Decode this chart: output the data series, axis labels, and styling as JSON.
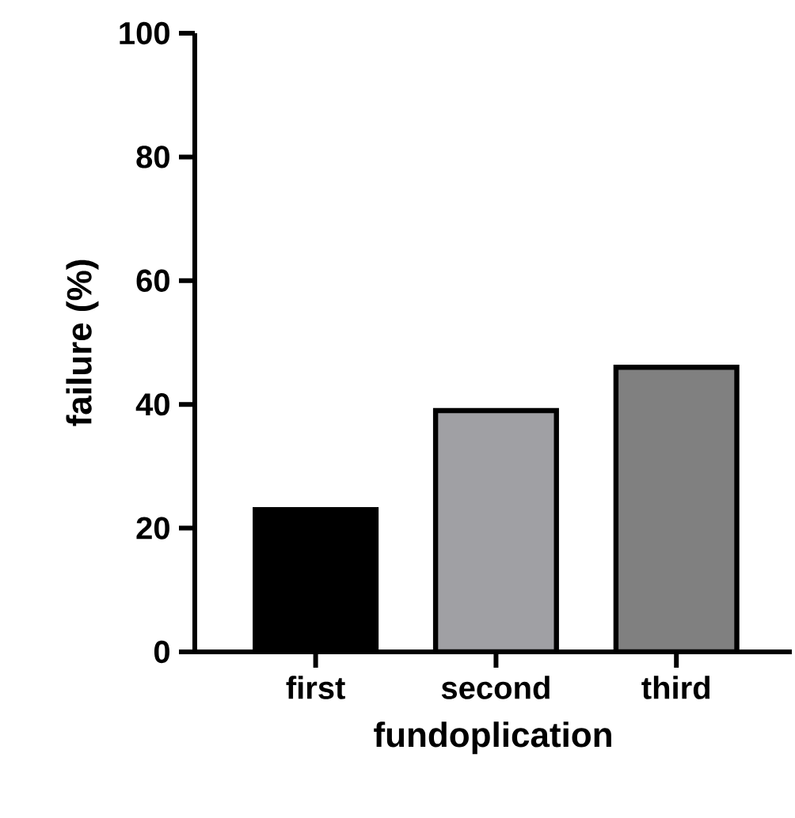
{
  "chart_data": {
    "type": "bar",
    "xlabel": "fundoplication",
    "ylabel": "failure (%)",
    "categories": [
      "first",
      "second",
      "third"
    ],
    "values": [
      23,
      39,
      46
    ],
    "colors": [
      "#000000",
      "#a0a0a4",
      "#808080"
    ],
    "ylim": [
      0,
      100
    ],
    "yticks": [
      0,
      20,
      40,
      60,
      80,
      100
    ],
    "grid": false
  }
}
